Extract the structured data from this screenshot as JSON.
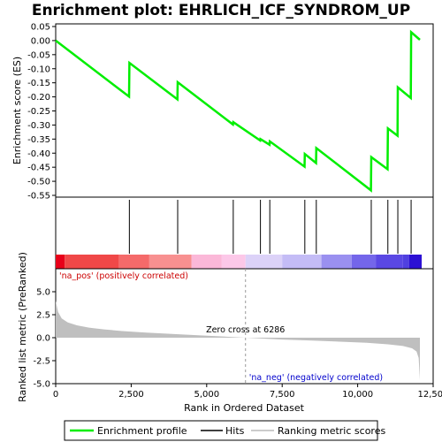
{
  "chart_data": {
    "type": "line",
    "title": "Enrichment plot: EHRLICH_ICF_SYNDROM_UP",
    "xlabel": "Rank in Ordered Dataset",
    "ylabel_top": "Enrichment score (ES)",
    "ylabel_bottom": "Ranked list metric (PreRanked)",
    "xlim": [
      0,
      12500
    ],
    "x_ticks": [
      0,
      2500,
      5000,
      7500,
      10000,
      12500
    ],
    "x_tick_labels": [
      "0",
      "2,500",
      "5,000",
      "7,500",
      "10,000",
      "12,500"
    ],
    "es_ylim": [
      -0.55,
      0.05
    ],
    "es_y_ticks": [
      0.05,
      0.0,
      -0.05,
      -0.1,
      -0.15,
      -0.2,
      -0.25,
      -0.3,
      -0.35,
      -0.4,
      -0.45,
      -0.5,
      -0.55
    ],
    "es_y_tick_labels": [
      "0.05",
      "0.00",
      "-0.05",
      "-0.10",
      "-0.15",
      "-0.20",
      "-0.25",
      "-0.30",
      "-0.35",
      "-0.40",
      "-0.45",
      "-0.50",
      "-0.55"
    ],
    "metric_ylim": [
      -5.0,
      7.5
    ],
    "metric_y_ticks": [
      5.0,
      2.5,
      0.0,
      -2.5,
      -5.0
    ],
    "metric_y_tick_labels": [
      "5.0",
      "2.5",
      "0.0",
      "-2.5",
      "-5.0"
    ],
    "series": [
      {
        "name": "Enrichment profile",
        "color": "#00ee00",
        "x": [
          0,
          2430,
          2440,
          4030,
          4040,
          5870,
          5880,
          6770,
          6780,
          7080,
          7090,
          8240,
          8250,
          8620,
          8630,
          10440,
          10450,
          10990,
          11000,
          11320,
          11330,
          11760,
          11770,
          12060
        ],
        "y": [
          0.0,
          -0.199,
          -0.079,
          -0.209,
          -0.148,
          -0.298,
          -0.29,
          -0.355,
          -0.35,
          -0.37,
          -0.358,
          -0.448,
          -0.403,
          -0.435,
          -0.382,
          -0.532,
          -0.414,
          -0.457,
          -0.312,
          -0.338,
          -0.166,
          -0.204,
          0.03,
          0.003
        ]
      }
    ],
    "hits": [
      2440,
      4040,
      5880,
      6780,
      7090,
      8250,
      8630,
      10450,
      11000,
      11330,
      11770
    ],
    "hits_legend": "Hits",
    "metric_legend": "Ranking metric scores",
    "zero_cross_label": "Zero cross at 6286",
    "zero_cross_x": 6286,
    "pos_label": "'na_pos' (positively correlated)",
    "neg_label": "'na_neg' (negatively correlated)",
    "pos_color": "#cc0000",
    "neg_color": "#0000cc",
    "metric_shape": [
      [
        0,
        4.0
      ],
      [
        80,
        2.8
      ],
      [
        200,
        2.1
      ],
      [
        400,
        1.65
      ],
      [
        700,
        1.35
      ],
      [
        1100,
        1.1
      ],
      [
        1600,
        0.9
      ],
      [
        2200,
        0.72
      ],
      [
        3000,
        0.55
      ],
      [
        4000,
        0.38
      ],
      [
        5000,
        0.22
      ],
      [
        6286,
        0.0
      ],
      [
        7500,
        -0.2
      ],
      [
        8500,
        -0.32
      ],
      [
        9500,
        -0.44
      ],
      [
        10300,
        -0.56
      ],
      [
        11000,
        -0.72
      ],
      [
        11500,
        -0.9
      ],
      [
        11800,
        -1.15
      ],
      [
        11950,
        -1.5
      ],
      [
        12020,
        -2.2
      ],
      [
        12060,
        -4.6
      ]
    ]
  },
  "legend": {
    "enrichment_profile": "Enrichment profile",
    "hits": "Hits",
    "ranking_metric": "Ranking metric scores"
  }
}
